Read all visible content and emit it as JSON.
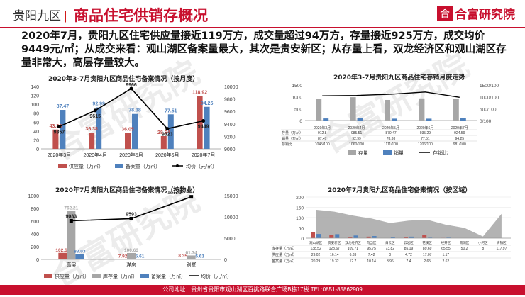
{
  "header": {
    "region": "贵阳九区",
    "separator": "|",
    "title": "商品住宅供销存概况",
    "logo_mark": "合",
    "logo_text": "合富研究院"
  },
  "summary": "2020年7月，贵阳九区住宅供应量接近119万方，成交量超过94万方，存量接近925万方，成交均价9449元/㎡；从成交来看：观山湖区备案量最大，其次是贵安新区；从存量上看，双龙经济区和观山湖区存量非常大，高层存量较大。",
  "footer": "公司地址：贵州省贵阳市观山湖区百挑路联合广场B栋17楼  TEL:0851-85862909",
  "watermark": "合富研究院",
  "colors": {
    "red": "#c0504d",
    "blue": "#4f81bd",
    "gray": "#a6a6a6",
    "black": "#000000",
    "brand": "#c8102e"
  },
  "chart1": {
    "title": "2020年3-7月贵阳九区商品住宅备案情况（按月度）",
    "chart_data": {
      "type": "bar",
      "categories": [
        "2020年3月",
        "2020年4月",
        "2020年5月",
        "2020年6月",
        "2020年7月"
      ],
      "series": [
        {
          "name": "供应量（万㎡）",
          "values": [
            43.34,
            36.38,
            36.05,
            28.64,
            118.92
          ],
          "labels": [
            "43.34",
            "36.38",
            "36.05",
            "28.64",
            "118.92"
          ],
          "color": "#c0504d",
          "axis": "left"
        },
        {
          "name": "备案量（万㎡）",
          "values": [
            87.47,
            92.99,
            78.38,
            77.51,
            94.25
          ],
          "labels": [
            "87.47",
            "92.99",
            "78.38",
            "77.51",
            "94.25"
          ],
          "color": "#4f81bd",
          "axis": "left"
        },
        {
          "name": "均价（元/㎡）",
          "type": "line",
          "values": [
            9357,
            9615,
            9966,
            9323,
            9449
          ],
          "labels": [
            "9357",
            "9615",
            "9966",
            "9323",
            "9449"
          ],
          "color": "#000000",
          "axis": "right"
        }
      ],
      "ylim": [
        0,
        140
      ],
      "yticks": [
        "0",
        "20",
        "40",
        "60",
        "80",
        "100",
        "120",
        "140"
      ],
      "y2lim": [
        9000,
        10000
      ],
      "y2ticks": [
        "9000",
        "9200",
        "9400",
        "9600",
        "9800",
        "10000"
      ]
    }
  },
  "chart2": {
    "title": "2020年3-7月贵阳九区商品住宅存销月度走势",
    "chart_data": {
      "type": "bar",
      "categories": [
        "2020年3月",
        "2020年4月",
        "2020年5月",
        "2020年6月",
        "2020年7月"
      ],
      "series": [
        {
          "name": "存量",
          "values": [
            912.8,
            985.51,
            870.47,
            935.29,
            924.59
          ],
          "color": "#a6a6a6",
          "axis": "left"
        },
        {
          "name": "销量",
          "values": [
            87.47,
            92.99,
            78.38,
            77.51,
            94.25
          ],
          "color": "#4f81bd",
          "axis": "left"
        },
        {
          "name": "存销比",
          "type": "line",
          "values": [
            1045,
            1060,
            1111,
            1206,
            981
          ],
          "color": "#000000",
          "axis": "right"
        }
      ],
      "ylim": [
        0,
        1500
      ],
      "yticks": [
        "0",
        "500",
        "1000",
        "1500"
      ],
      "y2lim": [
        0,
        1500
      ],
      "y2ticks": [
        "0/100",
        "500/100",
        "1000/100",
        "1500/100"
      ],
      "table": {
        "header": [
          "",
          "2020年3月",
          "2020年4月",
          "2020年5月",
          "2020年6月",
          "2020年7月"
        ],
        "rows": [
          [
            "存量（万㎡）",
            "912.8",
            "985.51",
            "870.47",
            "935.29",
            "924.59"
          ],
          [
            "销量（万㎡）",
            "87.47",
            "92.99",
            "78.38",
            "77.51",
            "94.25"
          ],
          [
            "存销比",
            "1045/100",
            "1060/100",
            "1111/100",
            "1206/100",
            "981/100"
          ]
        ]
      }
    }
  },
  "chart3": {
    "title": "2020年7月贵阳九区商品住宅备案情况（按物业）",
    "chart_data": {
      "type": "bar",
      "categories": [
        "高层",
        "洋房",
        "别墅"
      ],
      "series": [
        {
          "name": "供应量（万㎡）",
          "values": [
            102.65,
            7.92,
            8.35
          ],
          "labels": [
            "102.65",
            "7.92",
            "8.35"
          ],
          "color": "#c0504d",
          "axis": "left"
        },
        {
          "name": "库存量（万㎡）",
          "values": [
            762.21,
            100.63,
            61.74
          ],
          "labels": [
            "762.21",
            "100.63",
            "61.74"
          ],
          "color": "#a6a6a6",
          "axis": "left"
        },
        {
          "name": "备案量（万㎡）",
          "values": [
            83.03,
            5.61,
            5.61
          ],
          "labels": [
            "83.03",
            "5.61",
            "5.61"
          ],
          "color": "#4f81bd",
          "axis": "left"
        },
        {
          "name": "均价（元/㎡）",
          "type": "line",
          "values": [
            9083,
            9593,
            14724
          ],
          "labels": [
            "9083",
            "9593",
            "14724"
          ],
          "color": "#000000",
          "axis": "right"
        }
      ],
      "ylim": [
        0,
        1000
      ],
      "yticks": [
        "0",
        "200",
        "400",
        "600",
        "800",
        "1000"
      ],
      "y2lim": [
        0,
        15000
      ],
      "y2ticks": [
        "0",
        "5000",
        "10000",
        "15000"
      ]
    }
  },
  "chart4": {
    "title": "2020年7月贵阳九区商品住宅备案情况（按区域）",
    "chart_data": {
      "type": "area",
      "categories": [
        "观山湖区",
        "贵安新区",
        "双龙经济区",
        "乌当区",
        "白云区",
        "云岩区",
        "花溪区",
        "经开区",
        "南明区",
        "小河区",
        "清镇区"
      ],
      "series": [
        {
          "name": "库存量",
          "type": "area",
          "values": [
            138.52,
            128.67,
            109.71,
            95.75,
            73.82,
            85.19,
            89.69,
            65.55,
            50.2,
            8,
            117.97
          ],
          "color": "#a6a6a6"
        },
        {
          "name": "供应量",
          "values": [
            29.02,
            16.14,
            6.83,
            7.42,
            0,
            4.72,
            17.07,
            1.17,
            0,
            0,
            0
          ],
          "color": "#c0504d"
        },
        {
          "name": "备案量",
          "values": [
            20.29,
            19.32,
            12.7,
            10.14,
            3.96,
            7.4,
            2.65,
            2.62,
            0,
            0,
            0
          ],
          "color": "#4f81bd"
        }
      ],
      "ylim": [
        0,
        200
      ],
      "yticks": [
        "0",
        "50",
        "100",
        "150",
        "200"
      ],
      "table": {
        "rows": [
          [
            "库存量（万㎡）",
            "138.52",
            "128.67",
            "109.71",
            "95.75",
            "73.82",
            "85.19",
            "89.69",
            "65.55",
            "50.2",
            "8",
            "117.97"
          ],
          [
            "供应量（万㎡）",
            "29.02",
            "16.14",
            "6.83",
            "7.42",
            "0",
            "4.72",
            "17.07",
            "1.17",
            "",
            "",
            ""
          ],
          [
            "备案量（万㎡）",
            "20.29",
            "19.32",
            "12.7",
            "10.14",
            "3.96",
            "7.4",
            "2.65",
            "2.62",
            "",
            "",
            ""
          ]
        ]
      }
    }
  }
}
